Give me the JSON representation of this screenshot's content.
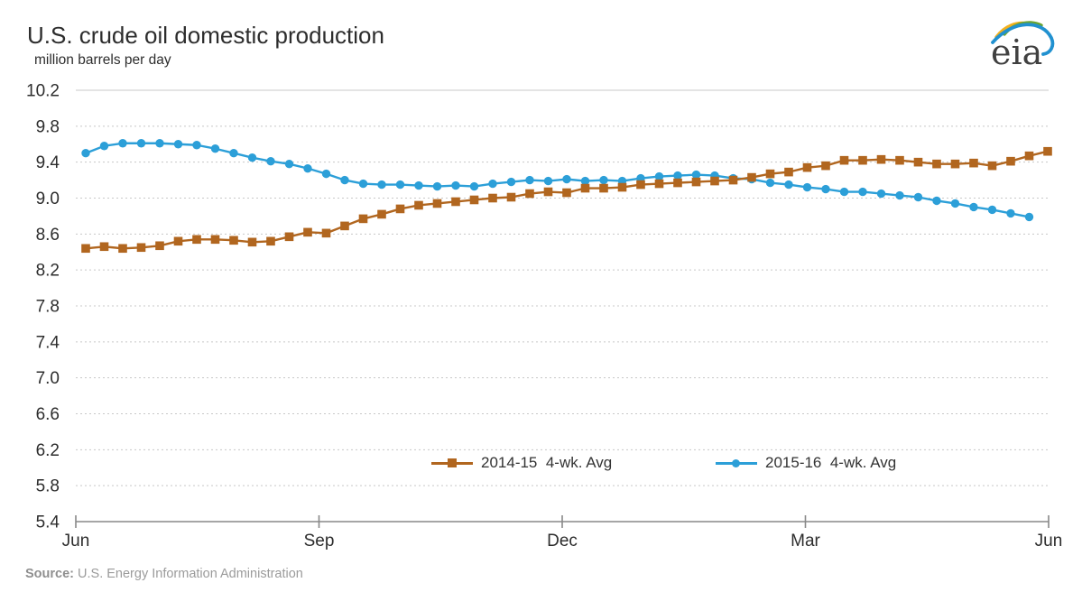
{
  "page": {
    "title": "U.S. crude oil domestic production",
    "subtitle": "million barrels per day"
  },
  "logo": {
    "text": "eia"
  },
  "footer": {
    "source_label": "Source:",
    "source_text": " U.S. Energy Information Administration"
  },
  "chart_data": {
    "type": "line",
    "title": "U.S. crude oil domestic production",
    "ylabel": "million barrels per day",
    "xlabel": "",
    "ylim": [
      5.4,
      10.2
    ],
    "y_ticks": [
      10.2,
      9.8,
      9.4,
      9.0,
      8.6,
      8.2,
      7.8,
      7.4,
      7.0,
      6.6,
      6.2,
      5.8,
      5.4
    ],
    "x_ticks": [
      "Jun",
      "Sep",
      "Dec",
      "Mar",
      "Jun"
    ],
    "x_unit": "weeks (4-week averages, Jun through Jun)",
    "grid": "horizontal dashed",
    "legend_position": "inside-bottom",
    "axis_color": "#888888",
    "gridline_color": "#c8c8c8",
    "label_color": "#2d2d2d",
    "series": [
      {
        "name": "2014-15  4-wk. Avg",
        "color": "#b1661f",
        "marker": "square",
        "values": [
          8.44,
          8.46,
          8.44,
          8.45,
          8.47,
          8.52,
          8.54,
          8.54,
          8.53,
          8.51,
          8.52,
          8.57,
          8.62,
          8.61,
          8.69,
          8.77,
          8.82,
          8.88,
          8.92,
          8.94,
          8.96,
          8.98,
          9.0,
          9.01,
          9.05,
          9.07,
          9.06,
          9.11,
          9.11,
          9.12,
          9.15,
          9.16,
          9.17,
          9.18,
          9.19,
          9.2,
          9.23,
          9.27,
          9.29,
          9.34,
          9.36,
          9.42,
          9.42,
          9.43,
          9.42,
          9.4,
          9.38,
          9.38,
          9.39,
          9.36,
          9.41,
          9.47,
          9.52
        ]
      },
      {
        "name": "2015-16  4-wk. Avg",
        "color": "#2c9fd8",
        "marker": "circle",
        "values": [
          9.5,
          9.58,
          9.61,
          9.61,
          9.61,
          9.6,
          9.59,
          9.55,
          9.5,
          9.45,
          9.41,
          9.38,
          9.33,
          9.27,
          9.2,
          9.16,
          9.15,
          9.15,
          9.14,
          9.13,
          9.14,
          9.13,
          9.16,
          9.18,
          9.2,
          9.19,
          9.21,
          9.19,
          9.2,
          9.19,
          9.22,
          9.24,
          9.25,
          9.26,
          9.25,
          9.22,
          9.21,
          9.17,
          9.15,
          9.12,
          9.1,
          9.07,
          9.07,
          9.05,
          9.03,
          9.01,
          8.97,
          8.94,
          8.9,
          8.87,
          8.83,
          8.79
        ]
      }
    ]
  }
}
